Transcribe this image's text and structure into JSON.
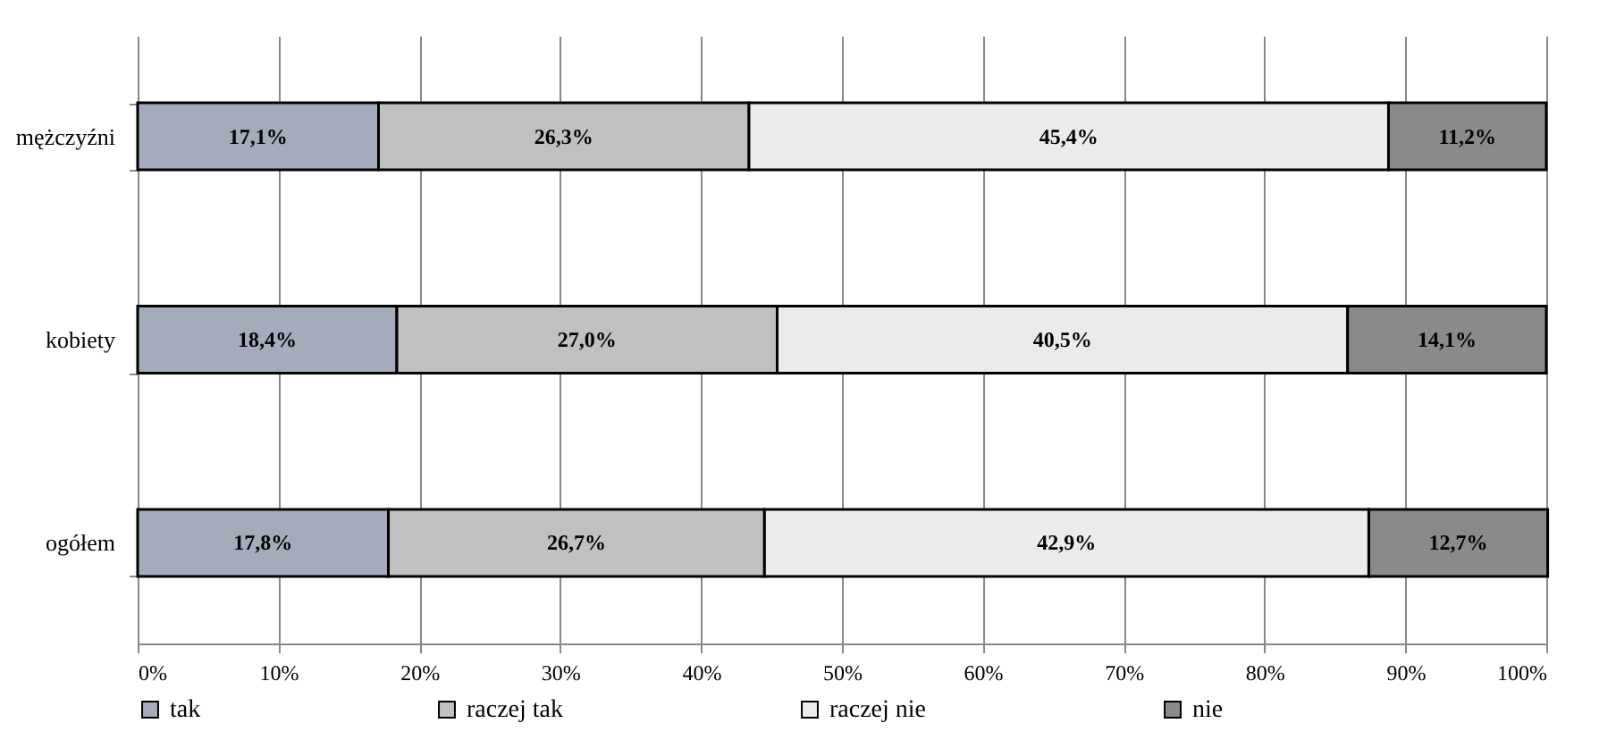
{
  "chart_data": {
    "type": "bar",
    "orientation": "horizontal",
    "stacked": true,
    "categories": [
      "mężczyźni",
      "kobiety",
      "ogółem"
    ],
    "series": [
      {
        "name": "tak",
        "color": "#a4acbc",
        "values": [
          17.1,
          18.4,
          17.8
        ],
        "value_labels": [
          "17,1%",
          "18,4%",
          "17,8%"
        ]
      },
      {
        "name": "raczej tak",
        "color": "#c0c0c0",
        "values": [
          26.3,
          27.0,
          26.7
        ],
        "value_labels": [
          "26,3%",
          "27,0%",
          "26,7%"
        ]
      },
      {
        "name": "raczej nie",
        "color": "#ebebeb",
        "values": [
          45.4,
          40.5,
          42.9
        ],
        "value_labels": [
          "45,4%",
          "40,5%",
          "42,9%"
        ]
      },
      {
        "name": "nie",
        "color": "#8a8a8a",
        "values": [
          11.2,
          14.1,
          12.7
        ],
        "value_labels": [
          "11,2%",
          "14,1%",
          "12,7%"
        ]
      }
    ],
    "xlim": [
      0,
      100
    ],
    "xticks": [
      {
        "value": 0,
        "label": "0%"
      },
      {
        "value": 10,
        "label": "10%"
      },
      {
        "value": 20,
        "label": "20%"
      },
      {
        "value": 30,
        "label": "30%"
      },
      {
        "value": 40,
        "label": "40%"
      },
      {
        "value": 50,
        "label": "50%"
      },
      {
        "value": 60,
        "label": "60%"
      },
      {
        "value": 70,
        "label": "70%"
      },
      {
        "value": 80,
        "label": "80%"
      },
      {
        "value": 90,
        "label": "90%"
      },
      {
        "value": 100,
        "label": "100%"
      }
    ],
    "grid": "x",
    "legend": "bottom"
  }
}
